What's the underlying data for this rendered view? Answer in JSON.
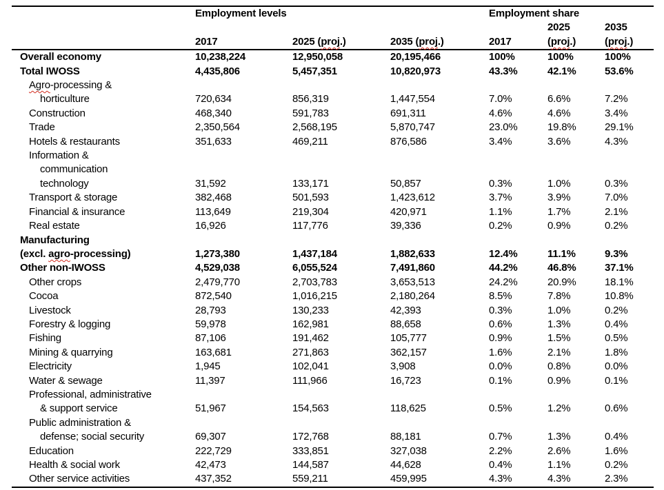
{
  "colors": {
    "text": "#000000",
    "background": "#ffffff",
    "table_border": "#000000",
    "spellcheck_squiggle": "#d22a1e"
  },
  "table": {
    "header": {
      "groups": [
        {
          "label": "Employment levels",
          "span": 3
        },
        {
          "label": "Employment share",
          "span": 3
        }
      ],
      "columns": [
        {
          "lines": [
            [
              {
                "t": "2017"
              }
            ]
          ]
        },
        {
          "lines": [
            [
              {
                "t": "2025 ("
              },
              {
                "t": "proj",
                "sq": true
              },
              {
                "t": ".)"
              }
            ]
          ]
        },
        {
          "lines": [
            [
              {
                "t": "2035 ("
              },
              {
                "t": "proj",
                "sq": true
              },
              {
                "t": ".)"
              }
            ]
          ]
        },
        {
          "lines": [
            [
              {
                "t": "2017"
              }
            ]
          ]
        },
        {
          "lines": [
            [
              {
                "t": "2025"
              }
            ],
            [
              {
                "t": "("
              },
              {
                "t": "proj",
                "sq": true
              },
              {
                "t": ".)"
              }
            ]
          ]
        },
        {
          "lines": [
            [
              {
                "t": "2035"
              }
            ],
            [
              {
                "t": "("
              },
              {
                "t": "proj",
                "sq": true
              },
              {
                "t": ".)"
              }
            ]
          ]
        }
      ]
    },
    "rows": [
      {
        "bold": true,
        "lines": [
          {
            "indent": 0,
            "segs": [
              {
                "t": "Overall economy"
              }
            ]
          }
        ],
        "values": [
          "10,238,224",
          "12,950,058",
          "20,195,466",
          "100%",
          "100%",
          "100%"
        ]
      },
      {
        "bold": true,
        "lines": [
          {
            "indent": 0,
            "segs": [
              {
                "t": "Total IWOSS"
              }
            ]
          }
        ],
        "values": [
          "4,435,806",
          "5,457,351",
          "10,820,973",
          "43.3%",
          "42.1%",
          "53.6%"
        ]
      },
      {
        "bold": false,
        "lines": [
          {
            "indent": 1,
            "segs": [
              {
                "t": "Agro",
                "sq": true
              },
              {
                "t": "-processing &"
              }
            ]
          },
          {
            "indent": 2,
            "segs": [
              {
                "t": "horticulture"
              }
            ]
          }
        ],
        "values": [
          "720,634",
          "856,319",
          "1,447,554",
          "7.0%",
          "6.6%",
          "7.2%"
        ]
      },
      {
        "bold": false,
        "lines": [
          {
            "indent": 1,
            "segs": [
              {
                "t": "Construction"
              }
            ]
          }
        ],
        "values": [
          "468,340",
          "591,783",
          "691,311",
          "4.6%",
          "4.6%",
          "3.4%"
        ]
      },
      {
        "bold": false,
        "lines": [
          {
            "indent": 1,
            "segs": [
              {
                "t": "Trade"
              }
            ]
          }
        ],
        "values": [
          "2,350,564",
          "2,568,195",
          "5,870,747",
          "23.0%",
          "19.8%",
          "29.1%"
        ]
      },
      {
        "bold": false,
        "lines": [
          {
            "indent": 1,
            "segs": [
              {
                "t": "Hotels & restaurants"
              }
            ]
          }
        ],
        "values": [
          "351,633",
          "469,211",
          "876,586",
          "3.4%",
          "3.6%",
          "4.3%"
        ]
      },
      {
        "bold": false,
        "lines": [
          {
            "indent": 1,
            "segs": [
              {
                "t": "Information &"
              }
            ]
          },
          {
            "indent": 2,
            "segs": [
              {
                "t": "communication"
              }
            ]
          },
          {
            "indent": 2,
            "segs": [
              {
                "t": "technology"
              }
            ]
          }
        ],
        "values": [
          "31,592",
          "133,171",
          "50,857",
          "0.3%",
          "1.0%",
          "0.3%"
        ]
      },
      {
        "bold": false,
        "lines": [
          {
            "indent": 1,
            "segs": [
              {
                "t": "Transport & storage"
              }
            ]
          }
        ],
        "values": [
          "382,468",
          "501,593",
          "1,423,612",
          "3.7%",
          "3.9%",
          "7.0%"
        ]
      },
      {
        "bold": false,
        "lines": [
          {
            "indent": 1,
            "segs": [
              {
                "t": "Financial & insurance"
              }
            ]
          }
        ],
        "values": [
          "113,649",
          "219,304",
          "420,971",
          "1.1%",
          "1.7%",
          "2.1%"
        ]
      },
      {
        "bold": false,
        "lines": [
          {
            "indent": 1,
            "segs": [
              {
                "t": "Real estate"
              }
            ]
          }
        ],
        "values": [
          "16,926",
          "117,776",
          "39,336",
          "0.2%",
          "0.9%",
          "0.2%"
        ]
      },
      {
        "bold": true,
        "lines": [
          {
            "indent": 0,
            "segs": [
              {
                "t": "Manufacturing"
              }
            ]
          },
          {
            "indent": 0,
            "segs": [
              {
                "t": "(excl. "
              },
              {
                "t": "agro",
                "sq": true
              },
              {
                "t": "-processing)"
              }
            ]
          }
        ],
        "values": [
          "1,273,380",
          "1,437,184",
          "1,882,633",
          "12.4%",
          "11.1%",
          "9.3%"
        ]
      },
      {
        "bold": true,
        "lines": [
          {
            "indent": 0,
            "segs": [
              {
                "t": "Other non-IWOSS"
              }
            ]
          }
        ],
        "values": [
          "4,529,038",
          "6,055,524",
          "7,491,860",
          "44.2%",
          "46.8%",
          "37.1%"
        ]
      },
      {
        "bold": false,
        "lines": [
          {
            "indent": 1,
            "segs": [
              {
                "t": "Other crops"
              }
            ]
          }
        ],
        "values": [
          "2,479,770",
          "2,703,783",
          "3,653,513",
          "24.2%",
          "20.9%",
          "18.1%"
        ]
      },
      {
        "bold": false,
        "lines": [
          {
            "indent": 1,
            "segs": [
              {
                "t": "Cocoa"
              }
            ]
          }
        ],
        "values": [
          "872,540",
          "1,016,215",
          "2,180,264",
          "8.5%",
          "7.8%",
          "10.8%"
        ]
      },
      {
        "bold": false,
        "lines": [
          {
            "indent": 1,
            "segs": [
              {
                "t": "Livestock"
              }
            ]
          }
        ],
        "values": [
          "28,793",
          "130,233",
          "42,393",
          "0.3%",
          "1.0%",
          "0.2%"
        ]
      },
      {
        "bold": false,
        "lines": [
          {
            "indent": 1,
            "segs": [
              {
                "t": "Forestry & logging"
              }
            ]
          }
        ],
        "values": [
          "59,978",
          "162,981",
          "88,658",
          "0.6%",
          "1.3%",
          "0.4%"
        ]
      },
      {
        "bold": false,
        "lines": [
          {
            "indent": 1,
            "segs": [
              {
                "t": "Fishing"
              }
            ]
          }
        ],
        "values": [
          "87,106",
          "191,462",
          "105,777",
          "0.9%",
          "1.5%",
          "0.5%"
        ]
      },
      {
        "bold": false,
        "lines": [
          {
            "indent": 1,
            "segs": [
              {
                "t": "Mining & quarrying"
              }
            ]
          }
        ],
        "values": [
          "163,681",
          "271,863",
          "362,157",
          "1.6%",
          "2.1%",
          "1.8%"
        ]
      },
      {
        "bold": false,
        "lines": [
          {
            "indent": 1,
            "segs": [
              {
                "t": "Electricity"
              }
            ]
          }
        ],
        "values": [
          "1,945",
          "102,041",
          "3,908",
          "0.0%",
          "0.8%",
          "0.0%"
        ]
      },
      {
        "bold": false,
        "lines": [
          {
            "indent": 1,
            "segs": [
              {
                "t": "Water & sewage"
              }
            ]
          }
        ],
        "values": [
          "11,397",
          "111,966",
          "16,723",
          "0.1%",
          "0.9%",
          "0.1%"
        ]
      },
      {
        "bold": false,
        "lines": [
          {
            "indent": 1,
            "segs": [
              {
                "t": "Professional, administrative"
              }
            ]
          },
          {
            "indent": 2,
            "segs": [
              {
                "t": "& support service"
              }
            ]
          }
        ],
        "values": [
          "51,967",
          "154,563",
          "118,625",
          "0.5%",
          "1.2%",
          "0.6%"
        ]
      },
      {
        "bold": false,
        "lines": [
          {
            "indent": 1,
            "segs": [
              {
                "t": "Public administration &"
              }
            ]
          },
          {
            "indent": 2,
            "segs": [
              {
                "t": "defense; social security"
              }
            ]
          }
        ],
        "values": [
          "69,307",
          "172,768",
          "88,181",
          "0.7%",
          "1.3%",
          "0.4%"
        ]
      },
      {
        "bold": false,
        "lines": [
          {
            "indent": 1,
            "segs": [
              {
                "t": "Education"
              }
            ]
          }
        ],
        "values": [
          "222,729",
          "333,851",
          "327,038",
          "2.2%",
          "2.6%",
          "1.6%"
        ]
      },
      {
        "bold": false,
        "lines": [
          {
            "indent": 1,
            "segs": [
              {
                "t": "Health & social work"
              }
            ]
          }
        ],
        "values": [
          "42,473",
          "144,587",
          "44,628",
          "0.4%",
          "1.1%",
          "0.2%"
        ]
      },
      {
        "bold": false,
        "lines": [
          {
            "indent": 1,
            "segs": [
              {
                "t": "Other service activities"
              }
            ]
          }
        ],
        "values": [
          "437,352",
          "559,211",
          "459,995",
          "4.3%",
          "4.3%",
          "2.3%"
        ]
      }
    ]
  }
}
